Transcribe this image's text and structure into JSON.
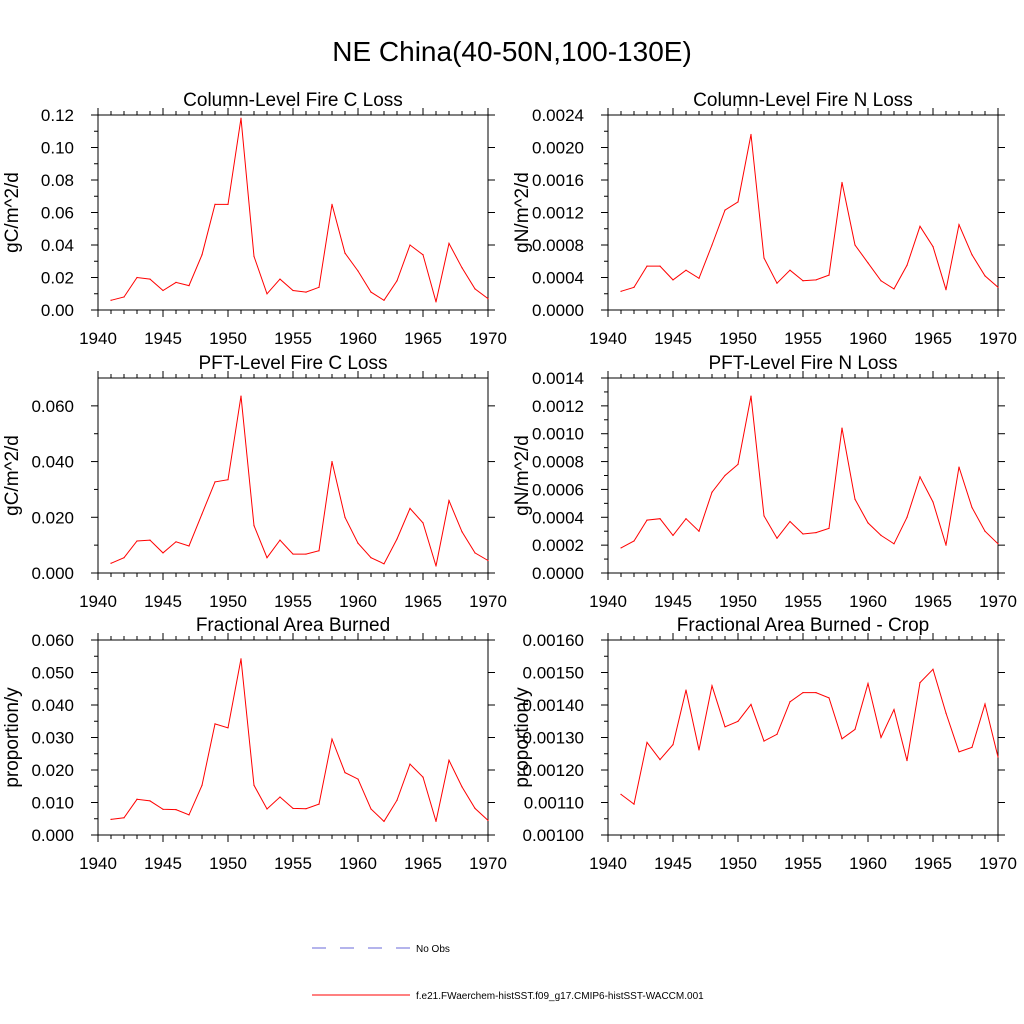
{
  "title": "NE China(40-50N,100-130E)",
  "colors": {
    "model": "#ff0000",
    "obs": "#6a6ad8",
    "axis": "#000000"
  },
  "legend": [
    {
      "label": "No Obs",
      "style": "dashed",
      "color": "#6a6ad8"
    },
    {
      "label": "f.e21.FWaerchem-histSST.f09_g17.CMIP6-histSST-WACCM.001",
      "style": "solid",
      "color": "#ff0000"
    }
  ],
  "chart_data": [
    {
      "type": "line",
      "title": "Column-Level Fire C Loss",
      "ylabel": "gC/m^2/d",
      "xlim": [
        1940,
        1970
      ],
      "ylim": [
        0,
        0.12
      ],
      "xticks": [
        "1940",
        "1945",
        "1950",
        "1955",
        "1960",
        "1965",
        "1970"
      ],
      "yticks": [
        "0.00",
        "0.02",
        "0.04",
        "0.06",
        "0.08",
        "0.10",
        "0.12"
      ],
      "x": [
        1941,
        1942,
        1943,
        1944,
        1945,
        1946,
        1947,
        1948,
        1949,
        1950,
        1951,
        1952,
        1953,
        1954,
        1955,
        1956,
        1957,
        1958,
        1959,
        1960,
        1961,
        1962,
        1963,
        1964,
        1965,
        1966,
        1967,
        1968,
        1969,
        1970
      ],
      "series": [
        {
          "values": [
            0.006,
            0.008,
            0.02,
            0.019,
            0.012,
            0.017,
            0.015,
            0.034,
            0.065,
            0.065,
            0.118,
            0.033,
            0.01,
            0.019,
            0.012,
            0.011,
            0.014,
            0.065,
            0.035,
            0.024,
            0.011,
            0.006,
            0.018,
            0.04,
            0.034,
            0.005,
            0.041,
            0.026,
            0.013,
            0.007
          ]
        }
      ]
    },
    {
      "type": "line",
      "title": "Column-Level Fire N Loss",
      "ylabel": "gN/m^2/d",
      "xlim": [
        1940,
        1970
      ],
      "ylim": [
        0,
        0.0024
      ],
      "xticks": [
        "1940",
        "1945",
        "1950",
        "1955",
        "1960",
        "1965",
        "1970"
      ],
      "yticks": [
        "0.0000",
        "0.0004",
        "0.0008",
        "0.0012",
        "0.0016",
        "0.0020",
        "0.0024"
      ],
      "x": [
        1941,
        1942,
        1943,
        1944,
        1945,
        1946,
        1947,
        1948,
        1949,
        1950,
        1951,
        1952,
        1953,
        1954,
        1955,
        1956,
        1957,
        1958,
        1959,
        1960,
        1961,
        1962,
        1963,
        1964,
        1965,
        1966,
        1967,
        1968,
        1969,
        1970
      ],
      "series": [
        {
          "values": [
            0.00023,
            0.00028,
            0.00054,
            0.00054,
            0.00037,
            0.00049,
            0.00039,
            0.0008,
            0.00123,
            0.00133,
            0.00216,
            0.00064,
            0.00033,
            0.00049,
            0.00036,
            0.00037,
            0.00043,
            0.00157,
            0.0008,
            0.00058,
            0.00036,
            0.00026,
            0.00055,
            0.00103,
            0.00078,
            0.00025,
            0.00105,
            0.00068,
            0.00042,
            0.00028
          ]
        }
      ]
    },
    {
      "type": "line",
      "title": "PFT-Level Fire C Loss",
      "ylabel": "gC/m^2/d",
      "xlim": [
        1940,
        1970
      ],
      "ylim": [
        0,
        0.07
      ],
      "xticks": [
        "1940",
        "1945",
        "1950",
        "1955",
        "1960",
        "1965",
        "1970"
      ],
      "yticks": [
        "0.000",
        "0.020",
        "0.040",
        "0.060"
      ],
      "ytick_values": [
        0,
        0.02,
        0.04,
        0.06
      ],
      "x": [
        1941,
        1942,
        1943,
        1944,
        1945,
        1946,
        1947,
        1948,
        1949,
        1950,
        1951,
        1952,
        1953,
        1954,
        1955,
        1956,
        1957,
        1958,
        1959,
        1960,
        1961,
        1962,
        1963,
        1964,
        1965,
        1966,
        1967,
        1968,
        1969,
        1970
      ],
      "series": [
        {
          "values": [
            0.0035,
            0.0055,
            0.0115,
            0.0118,
            0.0072,
            0.0112,
            0.0097,
            0.0212,
            0.0327,
            0.0335,
            0.0635,
            0.017,
            0.0055,
            0.0118,
            0.0068,
            0.0068,
            0.008,
            0.04,
            0.02,
            0.0107,
            0.0055,
            0.0033,
            0.0122,
            0.0232,
            0.018,
            0.0025,
            0.026,
            0.0148,
            0.0072,
            0.0045
          ]
        }
      ]
    },
    {
      "type": "line",
      "title": "PFT-Level Fire N Loss",
      "ylabel": "gN/m^2/d",
      "xlim": [
        1940,
        1970
      ],
      "ylim": [
        0,
        0.0014
      ],
      "xticks": [
        "1940",
        "1945",
        "1950",
        "1955",
        "1960",
        "1965",
        "1970"
      ],
      "yticks": [
        "0.0000",
        "0.0002",
        "0.0004",
        "0.0006",
        "0.0008",
        "0.0010",
        "0.0012",
        "0.0014"
      ],
      "x": [
        1941,
        1942,
        1943,
        1944,
        1945,
        1946,
        1947,
        1948,
        1949,
        1950,
        1951,
        1952,
        1953,
        1954,
        1955,
        1956,
        1957,
        1958,
        1959,
        1960,
        1961,
        1962,
        1963,
        1964,
        1965,
        1966,
        1967,
        1968,
        1969,
        1970
      ],
      "series": [
        {
          "values": [
            0.00018,
            0.00023,
            0.00038,
            0.00039,
            0.00027,
            0.00039,
            0.0003,
            0.00058,
            0.0007,
            0.00078,
            0.00127,
            0.00041,
            0.00025,
            0.00037,
            0.00028,
            0.00029,
            0.00032,
            0.00104,
            0.00053,
            0.00036,
            0.00027,
            0.00021,
            0.0004,
            0.00069,
            0.00051,
            0.0002,
            0.00076,
            0.00047,
            0.0003,
            0.00021
          ]
        }
      ]
    },
    {
      "type": "line",
      "title": "Fractional Area Burned",
      "ylabel": "proportion/y",
      "xlim": [
        1940,
        1970
      ],
      "ylim": [
        0,
        0.06
      ],
      "xticks": [
        "1940",
        "1945",
        "1950",
        "1955",
        "1960",
        "1965",
        "1970"
      ],
      "yticks": [
        "0.000",
        "0.010",
        "0.020",
        "0.030",
        "0.040",
        "0.050",
        "0.060"
      ],
      "x": [
        1941,
        1942,
        1943,
        1944,
        1945,
        1946,
        1947,
        1948,
        1949,
        1950,
        1951,
        1952,
        1953,
        1954,
        1955,
        1956,
        1957,
        1958,
        1959,
        1960,
        1961,
        1962,
        1963,
        1964,
        1965,
        1966,
        1967,
        1968,
        1969,
        1970
      ],
      "series": [
        {
          "values": [
            0.0048,
            0.0053,
            0.011,
            0.0105,
            0.0079,
            0.0078,
            0.0062,
            0.0153,
            0.0342,
            0.033,
            0.0542,
            0.0153,
            0.008,
            0.0117,
            0.0082,
            0.0081,
            0.0095,
            0.0295,
            0.0192,
            0.0172,
            0.008,
            0.0042,
            0.0107,
            0.0218,
            0.0178,
            0.0042,
            0.023,
            0.0148,
            0.0082,
            0.0045
          ]
        }
      ]
    },
    {
      "type": "line",
      "title": "Fractional Area Burned - Crop",
      "ylabel": "proportion/y",
      "xlim": [
        1940,
        1970
      ],
      "ylim": [
        0.001,
        0.0016
      ],
      "xticks": [
        "1940",
        "1945",
        "1950",
        "1955",
        "1960",
        "1965",
        "1970"
      ],
      "yticks": [
        "0.00100",
        "0.00110",
        "0.00120",
        "0.00130",
        "0.00140",
        "0.00150",
        "0.00160"
      ],
      "x": [
        1941,
        1942,
        1943,
        1944,
        1945,
        1946,
        1947,
        1948,
        1949,
        1950,
        1951,
        1952,
        1953,
        1954,
        1955,
        1956,
        1957,
        1958,
        1959,
        1960,
        1961,
        1962,
        1963,
        1964,
        1965,
        1966,
        1967,
        1968,
        1969,
        1970
      ],
      "series": [
        {
          "values": [
            0.001125,
            0.001095,
            0.001285,
            0.001232,
            0.001278,
            0.001446,
            0.001262,
            0.001459,
            0.001333,
            0.00135,
            0.001402,
            0.001289,
            0.00131,
            0.00141,
            0.001438,
            0.001438,
            0.001422,
            0.001296,
            0.001325,
            0.001466,
            0.0013,
            0.001386,
            0.001229,
            0.001469,
            0.00151,
            0.001375,
            0.001256,
            0.00127,
            0.001403,
            0.00124
          ]
        }
      ]
    }
  ]
}
